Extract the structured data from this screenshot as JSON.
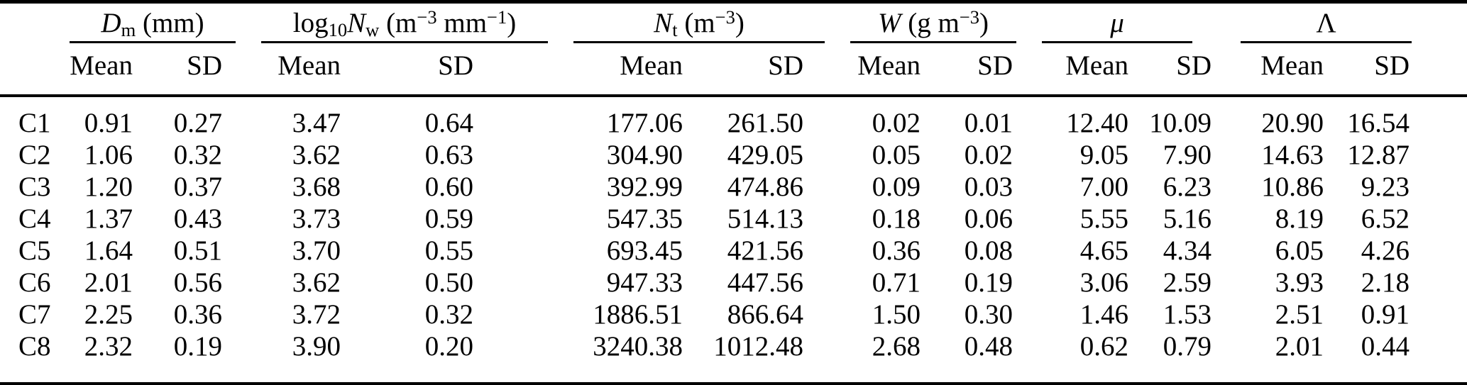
{
  "page": {
    "background": "#ffffff",
    "text_color": "#000000",
    "rule_color": "#000000"
  },
  "table": {
    "stub_label": "",
    "groups": [
      {
        "id": "dm",
        "label_html": "<i>D</i><sub>m</sub> (mm)",
        "sub": [
          "Mean",
          "SD"
        ]
      },
      {
        "id": "log10nw",
        "label_html": "log<sub>10</sub><i>N</i><sub>w</sub> (m<sup>−3</sup> mm<sup>−1</sup>)",
        "sub": [
          "Mean",
          "SD"
        ]
      },
      {
        "id": "nt",
        "label_html": "<i>N</i><sub>t</sub> (m<sup>−3</sup>)",
        "sub": [
          "Mean",
          "SD"
        ]
      },
      {
        "id": "w",
        "label_html": "<i>W</i> (g m<sup>−3</sup>)",
        "sub": [
          "Mean",
          "SD"
        ]
      },
      {
        "id": "mu",
        "label_html": "<i>μ</i>",
        "sub": [
          "Mean",
          "SD"
        ]
      },
      {
        "id": "lambda",
        "label_html": "Λ",
        "sub": [
          "Mean",
          "SD"
        ]
      }
    ],
    "rows": [
      {
        "label": "C1",
        "values": [
          "0.91",
          "0.27",
          "3.47",
          "0.64",
          "177.06",
          "261.50",
          "0.02",
          "0.01",
          "12.40",
          "10.09",
          "20.90",
          "16.54"
        ]
      },
      {
        "label": "C2",
        "values": [
          "1.06",
          "0.32",
          "3.62",
          "0.63",
          "304.90",
          "429.05",
          "0.05",
          "0.02",
          "9.05",
          "7.90",
          "14.63",
          "12.87"
        ]
      },
      {
        "label": "C3",
        "values": [
          "1.20",
          "0.37",
          "3.68",
          "0.60",
          "392.99",
          "474.86",
          "0.09",
          "0.03",
          "7.00",
          "6.23",
          "10.86",
          "9.23"
        ]
      },
      {
        "label": "C4",
        "values": [
          "1.37",
          "0.43",
          "3.73",
          "0.59",
          "547.35",
          "514.13",
          "0.18",
          "0.06",
          "5.55",
          "5.16",
          "8.19",
          "6.52"
        ]
      },
      {
        "label": "C5",
        "values": [
          "1.64",
          "0.51",
          "3.70",
          "0.55",
          "693.45",
          "421.56",
          "0.36",
          "0.08",
          "4.65",
          "4.34",
          "6.05",
          "4.26"
        ]
      },
      {
        "label": "C6",
        "values": [
          "2.01",
          "0.56",
          "3.62",
          "0.50",
          "947.33",
          "447.56",
          "0.71",
          "0.19",
          "3.06",
          "2.59",
          "3.93",
          "2.18"
        ]
      },
      {
        "label": "C7",
        "values": [
          "2.25",
          "0.36",
          "3.72",
          "0.32",
          "1886.51",
          "866.64",
          "1.50",
          "0.30",
          "1.46",
          "1.53",
          "2.51",
          "0.91"
        ]
      },
      {
        "label": "C8",
        "values": [
          "2.32",
          "0.19",
          "3.90",
          "0.20",
          "3240.38",
          "1012.48",
          "2.68",
          "0.48",
          "0.62",
          "0.79",
          "2.01",
          "0.44"
        ]
      }
    ]
  }
}
